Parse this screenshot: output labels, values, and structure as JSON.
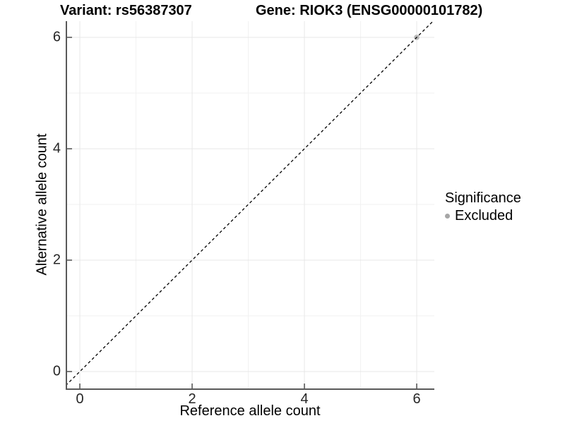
{
  "chart_data": {
    "type": "scatter",
    "title_left": "Variant: rs56387307",
    "title_right": "Gene: RIOK3 (ENSG00000101782)",
    "xlabel": "Reference allele count",
    "ylabel": "Alternative allele count",
    "x_ticks": [
      0,
      2,
      4,
      6
    ],
    "y_ticks": [
      0,
      2,
      4,
      6
    ],
    "x_minor_ticks": [
      1,
      3,
      5
    ],
    "y_minor_ticks": [
      1,
      3,
      5
    ],
    "xlim": [
      -0.252,
      6.314
    ],
    "ylim": [
      -0.329,
      6.291
    ],
    "grid": true,
    "points": [
      {
        "x": 6,
        "y": 6,
        "significance": "Excluded"
      }
    ],
    "reference_line": {
      "kind": "abline",
      "slope": 1,
      "intercept": 0,
      "linestyle": "dashed",
      "color": "#000000"
    },
    "legend": {
      "position": "right",
      "title": "Significance",
      "items": [
        {
          "label": "Excluded",
          "color": "#a6a6a6"
        }
      ]
    },
    "colors": {
      "background": "#ffffff",
      "grid_major": "#e7e7e7",
      "grid_minor": "#f2f2f2",
      "axis_line": "#595959",
      "tick_mark": "#4d4d4d",
      "point_fill": "#b4b4b4"
    }
  }
}
